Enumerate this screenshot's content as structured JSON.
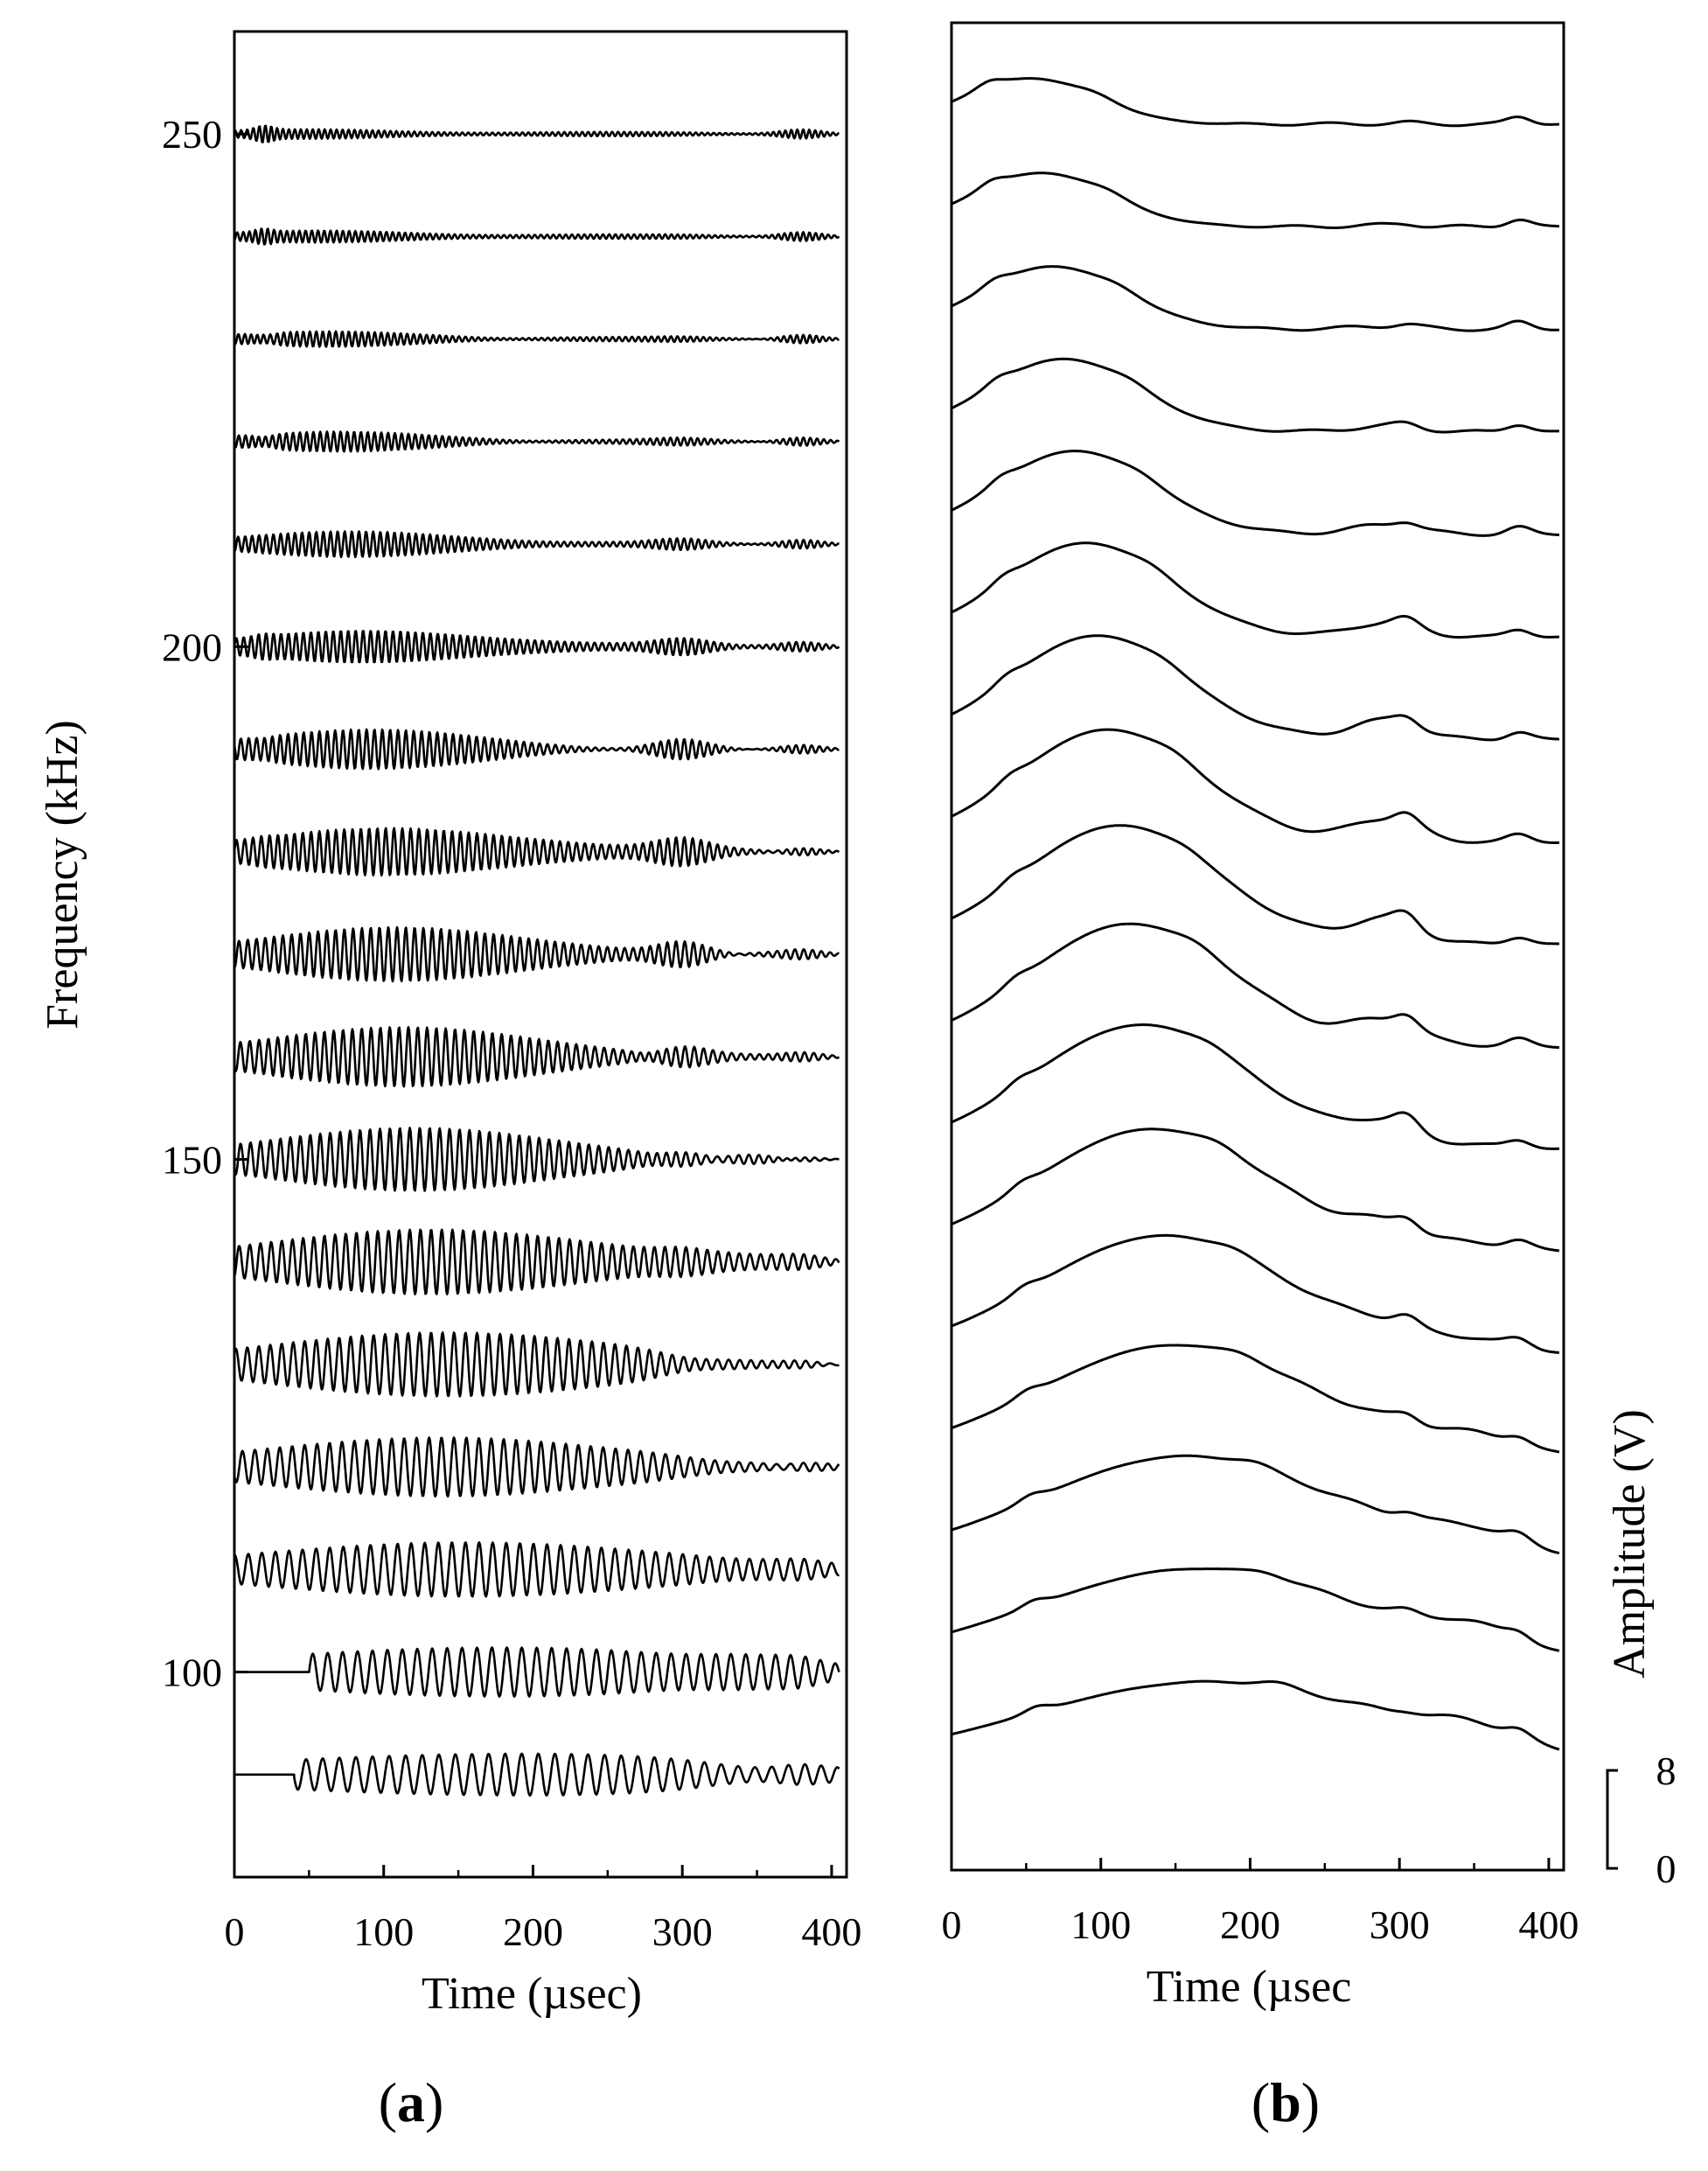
{
  "chart_data": [
    {
      "type": "line",
      "panel_label": "a",
      "title": "",
      "xlabel": "Time (µsec)",
      "ylabel": "Frequency (kHz)",
      "xlim": [
        0,
        410
      ],
      "ylim": [
        80,
        260
      ],
      "x_ticks": [
        0,
        100,
        200,
        300,
        400
      ],
      "y_ticks": [
        100,
        150,
        200,
        250
      ],
      "grid": false,
      "series_frequencies_khz": [
        90,
        100,
        110,
        120,
        130,
        140,
        150,
        160,
        170,
        180,
        190,
        200,
        210,
        220,
        230,
        240,
        250
      ],
      "description": "Stacked ultrasonic waveforms, one per excitation frequency, vertical offset = frequency"
    },
    {
      "type": "line",
      "panel_label": "b",
      "title": "",
      "xlabel": "Time (µsec",
      "ylabel": "Amplitude (V)",
      "xlim": [
        0,
        410
      ],
      "x_ticks": [
        0,
        100,
        200,
        300,
        400
      ],
      "amplitude_scale": [
        0,
        8
      ],
      "grid": false,
      "series_frequencies_khz": [
        90,
        100,
        110,
        120,
        130,
        140,
        150,
        160,
        170,
        180,
        190,
        200,
        210,
        220,
        230,
        240,
        250
      ],
      "description": "Envelopes of the waveforms in (a), stacked in the same order"
    }
  ]
}
